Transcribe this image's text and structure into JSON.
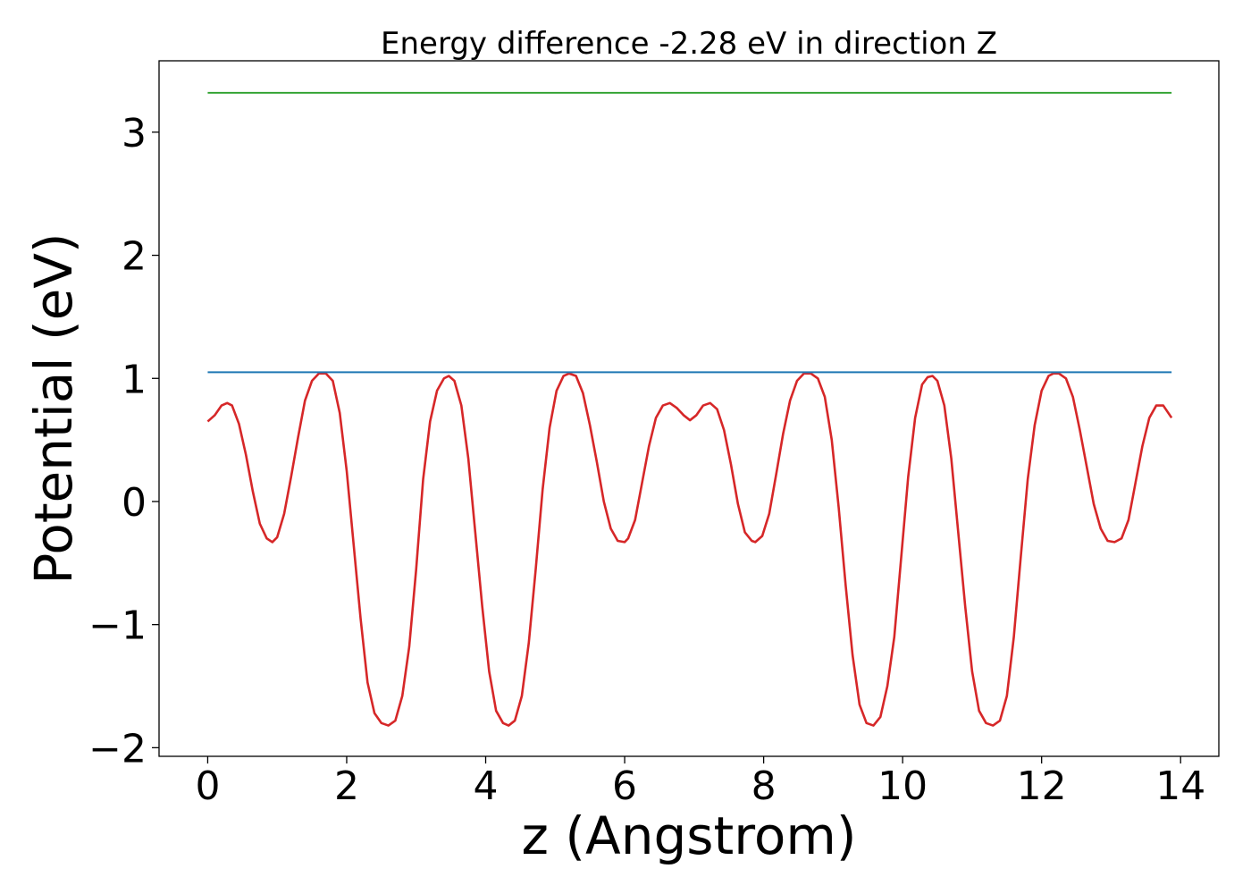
{
  "chart_data": {
    "type": "line",
    "title": "Energy difference -2.28 eV in direction Z",
    "xlabel": "z (Angstrom)",
    "ylabel": "Potential (eV)",
    "xlim": [
      -0.7,
      14.55
    ],
    "ylim": [
      -2.07,
      3.58
    ],
    "xticks": [
      0,
      2,
      4,
      6,
      8,
      10,
      12,
      14
    ],
    "xtick_labels": [
      "0",
      "2",
      "4",
      "6",
      "8",
      "10",
      "12",
      "14"
    ],
    "yticks": [
      -2,
      -1,
      0,
      1,
      2,
      3
    ],
    "ytick_labels": [
      "−2",
      "−1",
      "0",
      "1",
      "2",
      "3"
    ],
    "grid": false,
    "series": [
      {
        "color": "#d62728",
        "x": [
          0.0,
          0.1,
          0.2,
          0.28,
          0.35,
          0.45,
          0.55,
          0.65,
          0.75,
          0.85,
          0.93,
          1.0,
          1.1,
          1.2,
          1.3,
          1.4,
          1.5,
          1.6,
          1.7,
          1.8,
          1.9,
          2.0,
          2.1,
          2.2,
          2.3,
          2.4,
          2.5,
          2.6,
          2.7,
          2.8,
          2.9,
          3.0,
          3.1,
          3.2,
          3.3,
          3.4,
          3.47,
          3.55,
          3.65,
          3.75,
          3.85,
          3.95,
          4.05,
          4.15,
          4.25,
          4.33,
          4.42,
          4.52,
          4.62,
          4.72,
          4.82,
          4.92,
          5.02,
          5.12,
          5.2,
          5.3,
          5.4,
          5.5,
          5.6,
          5.7,
          5.8,
          5.9,
          6.0,
          6.05,
          6.15,
          6.25,
          6.35,
          6.45,
          6.55,
          6.65,
          6.75,
          6.85,
          6.94,
          7.03,
          7.13,
          7.23,
          7.33,
          7.43,
          7.53,
          7.63,
          7.73,
          7.83,
          7.88,
          7.98,
          8.08,
          8.18,
          8.28,
          8.38,
          8.48,
          8.58,
          8.68,
          8.78,
          8.88,
          8.98,
          9.08,
          9.18,
          9.28,
          9.38,
          9.48,
          9.58,
          9.68,
          9.78,
          9.88,
          9.98,
          10.08,
          10.18,
          10.28,
          10.36,
          10.43,
          10.5,
          10.6,
          10.7,
          10.8,
          10.9,
          11.0,
          11.1,
          11.2,
          11.3,
          11.4,
          11.5,
          11.6,
          11.7,
          11.8,
          11.9,
          12.0,
          12.1,
          12.17,
          12.25,
          12.35,
          12.45,
          12.55,
          12.65,
          12.75,
          12.85,
          12.95,
          13.05,
          13.15,
          13.25,
          13.35,
          13.45,
          13.55,
          13.65,
          13.75,
          13.87
        ],
        "y": [
          0.65,
          0.7,
          0.78,
          0.8,
          0.78,
          0.63,
          0.38,
          0.08,
          -0.18,
          -0.3,
          -0.33,
          -0.29,
          -0.1,
          0.2,
          0.52,
          0.82,
          0.98,
          1.04,
          1.04,
          0.98,
          0.72,
          0.25,
          -0.35,
          -0.95,
          -1.47,
          -1.72,
          -1.8,
          -1.82,
          -1.78,
          -1.58,
          -1.18,
          -0.55,
          0.18,
          0.65,
          0.9,
          1.0,
          1.02,
          0.98,
          0.78,
          0.35,
          -0.25,
          -0.85,
          -1.38,
          -1.7,
          -1.8,
          -1.82,
          -1.78,
          -1.58,
          -1.15,
          -0.55,
          0.1,
          0.6,
          0.9,
          1.02,
          1.04,
          1.02,
          0.88,
          0.62,
          0.32,
          0.0,
          -0.22,
          -0.32,
          -0.33,
          -0.3,
          -0.15,
          0.15,
          0.45,
          0.68,
          0.78,
          0.8,
          0.76,
          0.7,
          0.66,
          0.7,
          0.78,
          0.8,
          0.75,
          0.58,
          0.3,
          -0.02,
          -0.25,
          -0.32,
          -0.33,
          -0.28,
          -0.1,
          0.22,
          0.55,
          0.82,
          0.98,
          1.04,
          1.04,
          1.0,
          0.85,
          0.5,
          -0.05,
          -0.68,
          -1.25,
          -1.65,
          -1.8,
          -1.82,
          -1.75,
          -1.5,
          -1.1,
          -0.45,
          0.2,
          0.68,
          0.95,
          1.01,
          1.02,
          0.98,
          0.78,
          0.35,
          -0.25,
          -0.85,
          -1.38,
          -1.7,
          -1.8,
          -1.82,
          -1.78,
          -1.58,
          -1.1,
          -0.45,
          0.18,
          0.62,
          0.9,
          1.02,
          1.04,
          1.04,
          1.0,
          0.85,
          0.58,
          0.28,
          -0.02,
          -0.22,
          -0.32,
          -0.33,
          -0.3,
          -0.15,
          0.15,
          0.45,
          0.68,
          0.78,
          0.78,
          0.68
        ]
      },
      {
        "color": "#1f77b4",
        "x": [
          0.0,
          13.87
        ],
        "y": [
          1.05,
          1.05
        ]
      },
      {
        "color": "#2ca02c",
        "x": [
          0.0,
          13.87
        ],
        "y": [
          3.32,
          3.32
        ]
      }
    ]
  }
}
